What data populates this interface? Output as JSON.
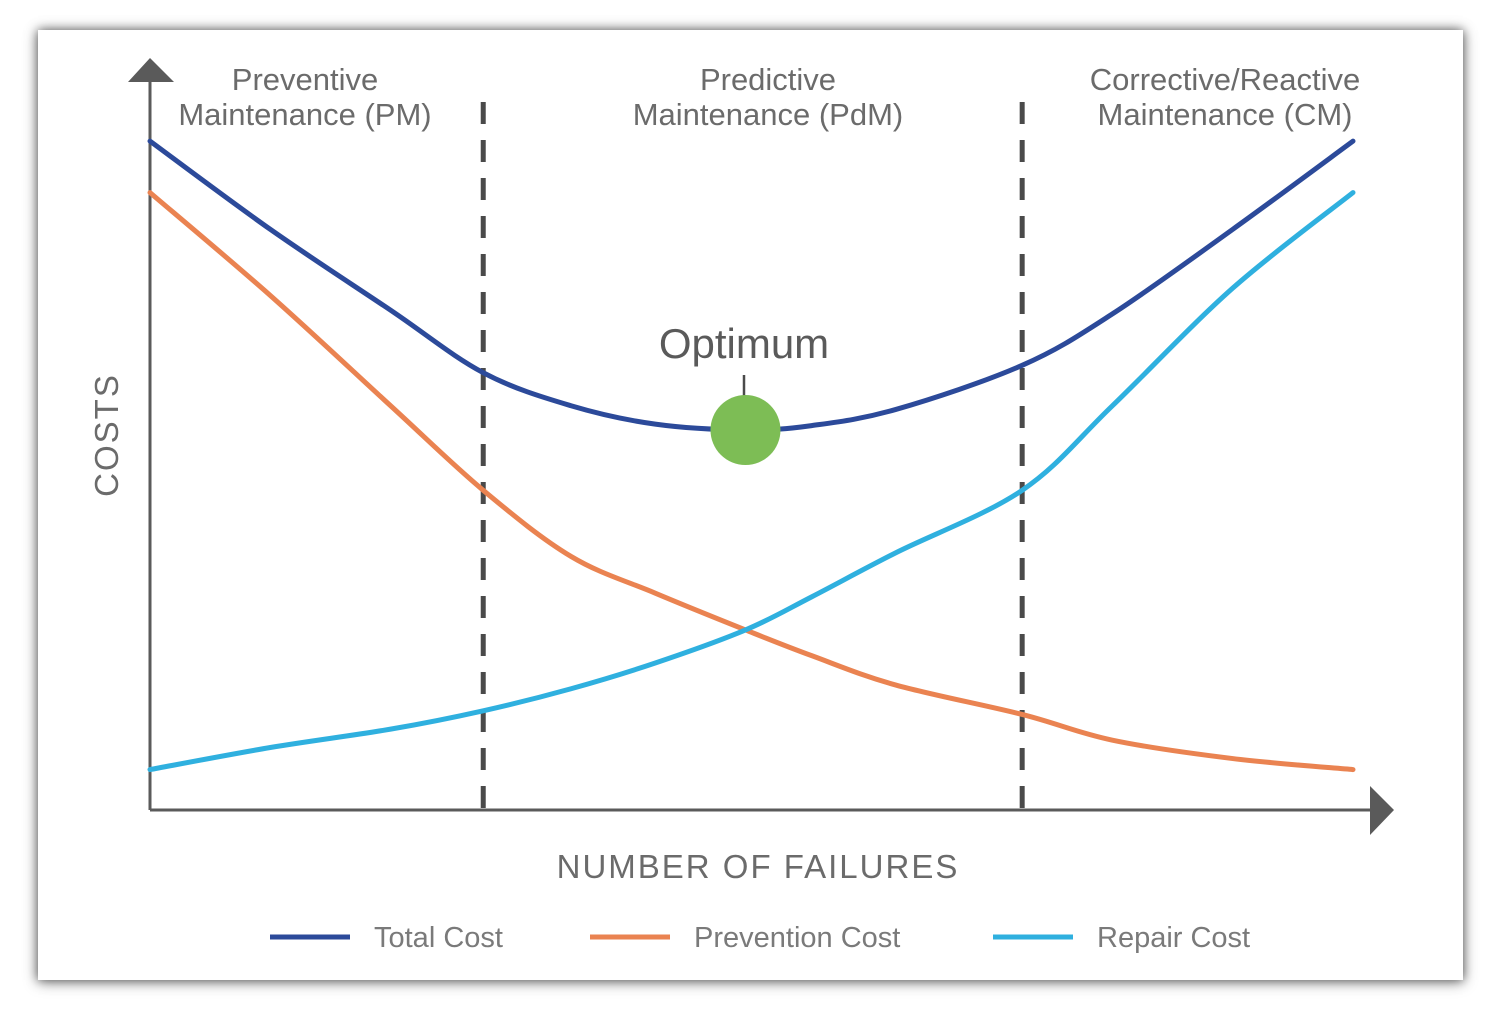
{
  "chart_data": {
    "type": "line",
    "xlabel": "NUMBER OF FAILURES",
    "ylabel": "COSTS",
    "xlim": [
      0,
      100
    ],
    "ylim": [
      0,
      100
    ],
    "regions": [
      {
        "label_line1": "Preventive",
        "label_line2": "Maintenance (PM)",
        "x_range": [
          0,
          27.7
        ]
      },
      {
        "label_line1": "Predictive",
        "label_line2": "Maintenance (PdM)",
        "x_range": [
          27.7,
          72.5
        ]
      },
      {
        "label_line1": "Corrective/Reactive",
        "label_line2": "Maintenance (CM)",
        "x_range": [
          72.5,
          100
        ]
      }
    ],
    "annotation": {
      "text": "Optimum",
      "x": 49.5,
      "y": 51.7
    },
    "x": [
      0,
      10,
      20,
      27.7,
      35,
      42,
      49.5,
      55,
      62,
      72.5,
      80,
      90,
      100
    ],
    "series": [
      {
        "name": "Total Cost",
        "color": "#2c4a9a",
        "values": [
          91,
          79,
          68,
          59.5,
          55,
          52.5,
          51.7,
          52.3,
          54.5,
          60.5,
          67.5,
          79,
          91
        ]
      },
      {
        "name": "Prevention Cost",
        "color": "#ea8351",
        "values": [
          84,
          70,
          55,
          43.5,
          34.5,
          29.5,
          24.5,
          21,
          17,
          13,
          9.5,
          7,
          5.5
        ]
      },
      {
        "name": "Repair Cost",
        "color": "#2fb0df",
        "values": [
          5.5,
          8.5,
          11,
          13.5,
          16.5,
          20,
          24.5,
          29,
          35,
          43.5,
          55,
          71,
          84
        ]
      }
    ],
    "grid": false,
    "legend_position": "bottom"
  }
}
